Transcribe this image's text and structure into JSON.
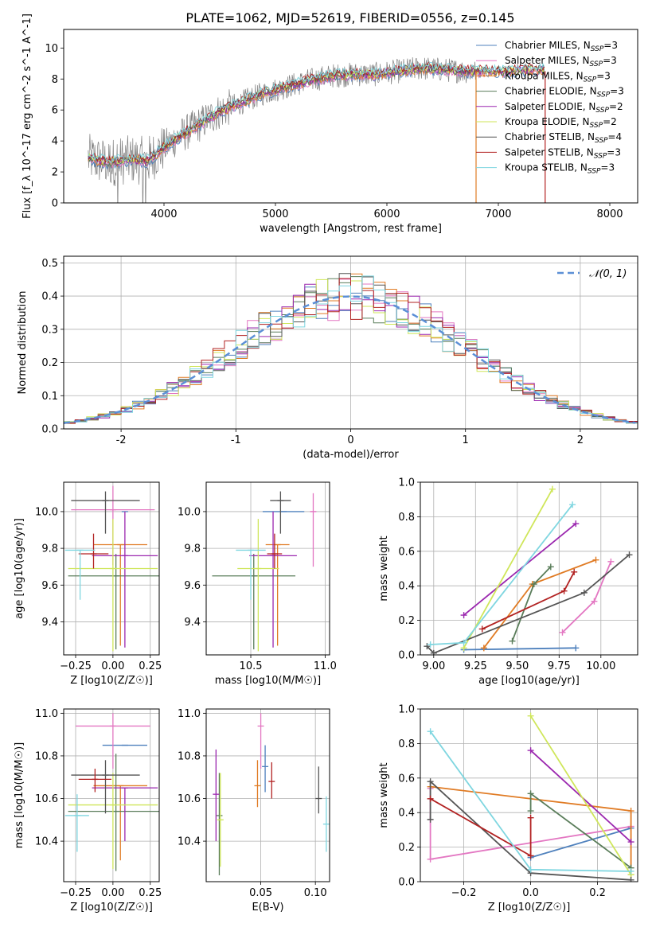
{
  "figure_title": "PLATE=1062, MJD=52619, FIBERID=0556, z=0.145",
  "colors": {
    "chabrier_miles": "#4f81bd",
    "salpeter_miles": "#e377c2",
    "kroupa_miles": "#e07b24",
    "chabrier_elodie": "#5a7d5a",
    "salpeter_elodie": "#9b27af",
    "kroupa_elodie": "#cfe65a",
    "chabrier_stelib": "#555555",
    "salpeter_stelib": "#b22222",
    "kroupa_stelib": "#7fd6e0",
    "data_spectrum": "#808080",
    "normal_curve": "#5b8fd6"
  },
  "chart_data": [
    {
      "id": "spectrum",
      "type": "line",
      "title": "PLATE=1062, MJD=52619, FIBERID=0556, z=0.145",
      "xlabel": "wavelength [Angstrom, rest frame]",
      "ylabel": "Flux [f_λ 10^-17 erg cm^-2 s^-1 A^-1]",
      "xlim": [
        3100,
        8250
      ],
      "ylim": [
        0,
        11.2
      ],
      "xticks": [
        4000,
        5000,
        6000,
        7000,
        8000
      ],
      "yticks": [
        0,
        2,
        4,
        6,
        8,
        10
      ],
      "grid": false,
      "legend_position": "upper-right",
      "legend": [
        {
          "label": "Chabrier MILES, N_SSP=3",
          "color_key": "chabrier_miles"
        },
        {
          "label": "Salpeter MILES, N_SSP=3",
          "color_key": "salpeter_miles"
        },
        {
          "label": "Kroupa MILES, N_SSP=3",
          "color_key": "kroupa_miles"
        },
        {
          "label": "Chabrier ELODIE, N_SSP=3",
          "color_key": "chabrier_elodie"
        },
        {
          "label": "Salpeter ELODIE, N_SSP=2",
          "color_key": "salpeter_elodie"
        },
        {
          "label": "Kroupa ELODIE, N_SSP=2",
          "color_key": "kroupa_elodie"
        },
        {
          "label": "Chabrier STELIB, N_SSP=4",
          "color_key": "chabrier_stelib"
        },
        {
          "label": "Salpeter STELIB, N_SSP=3",
          "color_key": "salpeter_stelib"
        },
        {
          "label": "Kroupa STELIB, N_SSP=3",
          "color_key": "kroupa_stelib"
        }
      ],
      "continuum": {
        "x": [
          3320,
          3500,
          3700,
          3850,
          3950,
          4100,
          4300,
          4500,
          4700,
          4900,
          5100,
          5300,
          5500,
          5700,
          5900,
          6100,
          6300,
          6500,
          6700,
          6900,
          7100,
          7300,
          7420
        ],
        "y": [
          2.9,
          2.6,
          2.8,
          2.7,
          3.3,
          4.1,
          5.0,
          5.9,
          6.5,
          7.1,
          7.5,
          7.9,
          8.2,
          8.3,
          8.3,
          8.5,
          8.7,
          8.6,
          8.5,
          8.5,
          8.5,
          8.6,
          8.6
        ]
      },
      "spectrum_extent": {
        "x_start": 3320,
        "x_end_models": 7420,
        "x_end_data": 6800
      },
      "drop_lines": [
        {
          "x": 6800,
          "color_key": "kroupa_miles"
        },
        {
          "x": 7420,
          "color_key": "salpeter_stelib"
        }
      ]
    },
    {
      "id": "residual_histogram",
      "type": "bar",
      "xlabel": "(data-model)/error",
      "ylabel": "Normed distribution",
      "xlim": [
        -2.5,
        2.5
      ],
      "ylim": [
        0,
        0.52
      ],
      "xticks": [
        -2,
        -1,
        0,
        1,
        2
      ],
      "yticks": [
        0.0,
        0.1,
        0.2,
        0.3,
        0.4,
        0.5
      ],
      "grid": true,
      "bin_width": 0.1,
      "legend": [
        {
          "label": "𝒩(0, 1)",
          "color_key": "normal_curve",
          "style": "dashed"
        }
      ],
      "legend_position": "upper-right"
    },
    {
      "id": "age_vs_Z",
      "type": "scatter",
      "xlabel": "Z [log10(Z/Z☉)]",
      "ylabel": "age [log10(age/yr)]",
      "xlim": [
        -0.33,
        0.31
      ],
      "ylim": [
        9.22,
        10.16
      ],
      "xticks": [
        -0.25,
        0.0,
        0.25
      ],
      "xtick_labels": [
        "−0.25",
        "0.00",
        "0.25"
      ],
      "yticks": [
        9.4,
        9.6,
        9.8,
        10.0
      ],
      "grid": true,
      "points": [
        {
          "series": "chabrier_miles",
          "x": 0.08,
          "y": 10.0,
          "xerr": 0.0,
          "yerr": [
            0.0,
            0.0
          ]
        },
        {
          "series": "salpeter_miles",
          "x": 0.0,
          "y": 10.01,
          "xerr": 0.28,
          "yerr": [
            0.3,
            0.13
          ]
        },
        {
          "series": "kroupa_miles",
          "x": 0.05,
          "y": 9.82,
          "xerr": 0.18,
          "yerr": [
            0.55,
            0.0
          ]
        },
        {
          "series": "chabrier_elodie",
          "x": 0.02,
          "y": 9.65,
          "xerr": 0.32,
          "yerr": [
            0.4,
            0.12
          ]
        },
        {
          "series": "salpeter_elodie",
          "x": 0.08,
          "y": 9.76,
          "xerr": 0.22,
          "yerr": [
            0.5,
            0.24
          ]
        },
        {
          "series": "kroupa_elodie",
          "x": 0.0,
          "y": 9.69,
          "xerr": 0.3,
          "yerr": [
            0.45,
            0.27
          ]
        },
        {
          "series": "chabrier_stelib",
          "x": -0.05,
          "y": 10.06,
          "xerr": 0.23,
          "yerr": [
            0.18,
            0.05
          ]
        },
        {
          "series": "salpeter_stelib",
          "x": -0.13,
          "y": 9.77,
          "xerr": 0.1,
          "yerr": [
            0.08,
            0.11
          ]
        },
        {
          "series": "kroupa_stelib",
          "x": -0.22,
          "y": 9.79,
          "xerr": 0.1,
          "yerr": [
            0.27,
            0.0
          ]
        }
      ]
    },
    {
      "id": "age_vs_mass",
      "type": "scatter",
      "xlabel": "mass [log10(M/M☉)]",
      "ylabel": "",
      "xlim": [
        10.2,
        11.03
      ],
      "ylim": [
        9.22,
        10.16
      ],
      "xticks": [
        10.5,
        11.0
      ],
      "xtick_labels": [
        "10.5",
        "11.0"
      ],
      "yticks": [
        9.4,
        9.6,
        9.8,
        10.0
      ],
      "grid": true,
      "points": [
        {
          "series": "chabrier_miles",
          "x": 10.72,
          "y": 10.0,
          "xerr": 0.14,
          "yerr": [
            0.0,
            0.0
          ]
        },
        {
          "series": "salpeter_miles",
          "x": 10.92,
          "y": 10.0,
          "xerr": 0.02,
          "yerr": [
            0.3,
            0.1
          ]
        },
        {
          "series": "kroupa_miles",
          "x": 10.68,
          "y": 9.82,
          "xerr": 0.08,
          "yerr": [
            0.55,
            0.0
          ]
        },
        {
          "series": "chabrier_elodie",
          "x": 10.52,
          "y": 9.65,
          "xerr": 0.28,
          "yerr": [
            0.4,
            0.12
          ]
        },
        {
          "series": "salpeter_elodie",
          "x": 10.65,
          "y": 9.76,
          "xerr": 0.16,
          "yerr": [
            0.5,
            0.24
          ]
        },
        {
          "series": "kroupa_elodie",
          "x": 10.55,
          "y": 9.69,
          "xerr": 0.14,
          "yerr": [
            0.45,
            0.27
          ]
        },
        {
          "series": "chabrier_stelib",
          "x": 10.7,
          "y": 10.06,
          "xerr": 0.07,
          "yerr": [
            0.18,
            0.05
          ]
        },
        {
          "series": "salpeter_stelib",
          "x": 10.66,
          "y": 9.77,
          "xerr": 0.05,
          "yerr": [
            0.08,
            0.11
          ]
        },
        {
          "series": "kroupa_stelib",
          "x": 10.5,
          "y": 9.79,
          "xerr": 0.1,
          "yerr": [
            0.27,
            0.0
          ]
        }
      ]
    },
    {
      "id": "mass_weight_vs_age",
      "type": "line",
      "xlabel": "age [log10(age/yr)]",
      "ylabel": "mass weight",
      "xlim": [
        8.92,
        10.22
      ],
      "ylim": [
        0,
        1
      ],
      "xticks": [
        9.0,
        9.25,
        9.5,
        9.75,
        10.0
      ],
      "xtick_labels": [
        "9.00",
        "9.25",
        "9.50",
        "9.75",
        "10.00"
      ],
      "yticks": [
        0.0,
        0.2,
        0.4,
        0.6,
        0.8,
        1.0
      ],
      "grid": true,
      "series": [
        {
          "name": "chabrier_miles",
          "x": [
            9.18,
            9.85
          ],
          "y": [
            0.03,
            0.04
          ]
        },
        {
          "name": "salpeter_miles",
          "x": [
            9.77,
            9.96,
            10.06
          ],
          "y": [
            0.13,
            0.31,
            0.54
          ]
        },
        {
          "name": "kroupa_miles",
          "x": [
            9.3,
            9.59,
            9.97
          ],
          "y": [
            0.04,
            0.41,
            0.55
          ]
        },
        {
          "name": "chabrier_elodie",
          "x": [
            9.47,
            9.6,
            9.7
          ],
          "y": [
            0.08,
            0.41,
            0.51
          ]
        },
        {
          "name": "salpeter_elodie",
          "x": [
            9.18,
            9.85
          ],
          "y": [
            0.23,
            0.76
          ]
        },
        {
          "name": "kroupa_elodie",
          "x": [
            9.18,
            9.71
          ],
          "y": [
            0.04,
            0.96
          ]
        },
        {
          "name": "chabrier_stelib",
          "x": [
            8.96,
            9.0,
            9.9,
            10.17
          ],
          "y": [
            0.05,
            0.01,
            0.36,
            0.58
          ]
        },
        {
          "name": "salpeter_stelib",
          "x": [
            9.29,
            9.78,
            9.84
          ],
          "y": [
            0.15,
            0.37,
            0.48
          ]
        },
        {
          "name": "kroupa_stelib",
          "x": [
            8.98,
            9.18,
            9.83
          ],
          "y": [
            0.06,
            0.07,
            0.87
          ]
        }
      ]
    },
    {
      "id": "mass_vs_Z",
      "type": "scatter",
      "xlabel": "Z [log10(Z/Z☉)]",
      "ylabel": "mass [log10(M/M☉)]",
      "xlim": [
        -0.33,
        0.31
      ],
      "ylim": [
        10.21,
        11.02
      ],
      "xticks": [
        -0.25,
        0.0,
        0.25
      ],
      "xtick_labels": [
        "−0.25",
        "0.00",
        "0.25"
      ],
      "yticks": [
        10.4,
        10.6,
        10.8,
        11.0
      ],
      "grid": true,
      "points": [
        {
          "series": "chabrier_miles",
          "x": 0.08,
          "y": 10.85,
          "xerr": 0.15,
          "yerr": [
            0.0,
            0.0
          ]
        },
        {
          "series": "salpeter_miles",
          "x": 0.0,
          "y": 10.94,
          "xerr": 0.25,
          "yerr": [
            0.2,
            0.06
          ]
        },
        {
          "series": "kroupa_miles",
          "x": 0.05,
          "y": 10.66,
          "xerr": 0.18,
          "yerr": [
            0.35,
            0.0
          ]
        },
        {
          "series": "chabrier_elodie",
          "x": 0.02,
          "y": 10.54,
          "xerr": 0.32,
          "yerr": [
            0.28,
            0.27
          ]
        },
        {
          "series": "salpeter_elodie",
          "x": 0.08,
          "y": 10.65,
          "xerr": 0.22,
          "yerr": [
            0.25,
            0.0
          ]
        },
        {
          "series": "kroupa_elodie",
          "x": 0.0,
          "y": 10.57,
          "xerr": 0.3,
          "yerr": [
            0.3,
            0.15
          ]
        },
        {
          "series": "chabrier_stelib",
          "x": -0.05,
          "y": 10.71,
          "xerr": 0.23,
          "yerr": [
            0.18,
            0.07
          ]
        },
        {
          "series": "salpeter_stelib",
          "x": -0.12,
          "y": 10.69,
          "xerr": 0.11,
          "yerr": [
            0.06,
            0.05
          ]
        },
        {
          "series": "kroupa_stelib",
          "x": -0.24,
          "y": 10.52,
          "xerr": 0.08,
          "yerr": [
            0.17,
            0.1
          ]
        }
      ]
    },
    {
      "id": "mass_vs_ebv",
      "type": "scatter",
      "xlabel": "E(B-V)",
      "ylabel": "",
      "xlim": [
        0.0,
        0.113
      ],
      "ylim": [
        10.21,
        11.02
      ],
      "xticks": [
        0.05,
        0.1
      ],
      "xtick_labels": [
        "0.05",
        "0.10"
      ],
      "yticks": [
        10.4,
        10.6,
        10.8,
        11.0
      ],
      "grid": true,
      "points": [
        {
          "series": "chabrier_miles",
          "x": 0.054,
          "y": 10.75,
          "xerr": 0.0,
          "yerr": [
            0.12,
            0.1
          ]
        },
        {
          "series": "salpeter_miles",
          "x": 0.05,
          "y": 10.94,
          "xerr": 0.0,
          "yerr": [
            0.2,
            0.06
          ]
        },
        {
          "series": "kroupa_miles",
          "x": 0.047,
          "y": 10.66,
          "xerr": 0.0,
          "yerr": [
            0.1,
            0.12
          ]
        },
        {
          "series": "chabrier_elodie",
          "x": 0.012,
          "y": 10.52,
          "xerr": 0.0,
          "yerr": [
            0.28,
            0.2
          ]
        },
        {
          "series": "salpeter_elodie",
          "x": 0.009,
          "y": 10.62,
          "xerr": 0.0,
          "yerr": [
            0.22,
            0.21
          ]
        },
        {
          "series": "kroupa_elodie",
          "x": 0.013,
          "y": 10.5,
          "xerr": 0.0,
          "yerr": [
            0.22,
            0.22
          ]
        },
        {
          "series": "chabrier_stelib",
          "x": 0.103,
          "y": 10.6,
          "xerr": 0.0,
          "yerr": [
            0.07,
            0.15
          ]
        },
        {
          "series": "salpeter_stelib",
          "x": 0.06,
          "y": 10.68,
          "xerr": 0.0,
          "yerr": [
            0.08,
            0.09
          ]
        },
        {
          "series": "kroupa_stelib",
          "x": 0.11,
          "y": 10.48,
          "xerr": 0.0,
          "yerr": [
            0.13,
            0.13
          ]
        }
      ]
    },
    {
      "id": "mass_weight_vs_Z",
      "type": "line",
      "xlabel": "Z [log10(Z/Z☉)]",
      "ylabel": "mass weight",
      "xlim": [
        -0.33,
        0.32
      ],
      "ylim": [
        0,
        1
      ],
      "xticks": [
        -0.2,
        0.0,
        0.2
      ],
      "xtick_labels": [
        "−0.2",
        "0.0",
        "0.2"
      ],
      "yticks": [
        0.0,
        0.2,
        0.4,
        0.6,
        0.8,
        1.0
      ],
      "grid": true,
      "series": [
        {
          "name": "chabrier_miles",
          "x": [
            0.0,
            0.3
          ],
          "y": [
            0.14,
            0.31
          ]
        },
        {
          "name": "salpeter_miles",
          "x": [
            -0.3,
            -0.3,
            0.3
          ],
          "y": [
            0.54,
            0.13,
            0.32
          ]
        },
        {
          "name": "kroupa_miles",
          "x": [
            -0.3,
            0.3,
            0.3
          ],
          "y": [
            0.55,
            0.41,
            0.04
          ]
        },
        {
          "name": "chabrier_elodie",
          "x": [
            0.0,
            0.0,
            0.3
          ],
          "y": [
            0.41,
            0.51,
            0.08
          ]
        },
        {
          "name": "salpeter_elodie",
          "x": [
            0.0,
            0.3
          ],
          "y": [
            0.76,
            0.23
          ]
        },
        {
          "name": "kroupa_elodie",
          "x": [
            0.0,
            0.3
          ],
          "y": [
            0.96,
            0.04
          ]
        },
        {
          "name": "chabrier_stelib",
          "x": [
            -0.3,
            -0.3,
            0.0,
            0.3
          ],
          "y": [
            0.36,
            0.58,
            0.05,
            0.01
          ]
        },
        {
          "name": "salpeter_stelib",
          "x": [
            -0.3,
            0.0,
            0.0
          ],
          "y": [
            0.48,
            0.15,
            0.37
          ]
        },
        {
          "name": "kroupa_stelib",
          "x": [
            -0.3,
            0.0,
            0.3
          ],
          "y": [
            0.87,
            0.07,
            0.06
          ]
        }
      ]
    }
  ]
}
